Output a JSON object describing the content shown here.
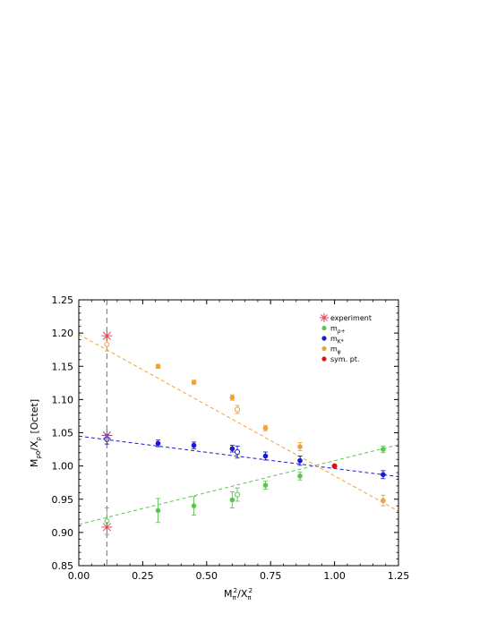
{
  "chart_data": {
    "type": "scatter",
    "title": "",
    "xlabel": {
      "main": "M",
      "sub1": "π",
      "sup": "2",
      "mid": "/X",
      "sub2": "π",
      "sup2": "2"
    },
    "ylabel": {
      "main": "M",
      "sub1": "ρ0",
      "mid": "/X",
      "sub2": "ρ",
      "tail": " [Octet]"
    },
    "xlim": [
      0.0,
      1.25
    ],
    "ylim": [
      0.85,
      1.25
    ],
    "xticks": [
      "0.00",
      "0.25",
      "0.50",
      "0.75",
      "1.00",
      "1.25"
    ],
    "yticks": [
      "0.85",
      "0.90",
      "0.95",
      "1.00",
      "1.05",
      "1.10",
      "1.15",
      "1.20",
      "1.25"
    ],
    "physical_point_x": 0.11,
    "legend_position": "top-right",
    "legend": [
      {
        "label": "experiment",
        "main": "experiment",
        "sub": "",
        "color": "#e8445a",
        "marker": "star"
      },
      {
        "label": "m_ρ+",
        "main": "m",
        "sub": "ρ+",
        "color": "#5cc550",
        "marker": "dot"
      },
      {
        "label": "m_K*",
        "main": "m",
        "sub": "K*",
        "color": "#1a1acc",
        "marker": "dot"
      },
      {
        "label": "m_φ",
        "main": "m",
        "sub": "φ",
        "color": "#f5a030",
        "marker": "dot"
      },
      {
        "label": "sym. pt.",
        "main": "sym. pt.",
        "sub": "",
        "color": "#dd1111",
        "marker": "dot"
      }
    ],
    "series": [
      {
        "name": "m_ρ+",
        "color": "#5cc550",
        "fit": [
          [
            0.0,
            0.912
          ],
          [
            1.25,
            1.032
          ]
        ],
        "points": [
          {
            "x": 0.31,
            "y": 0.933,
            "err": 0.018
          },
          {
            "x": 0.45,
            "y": 0.94,
            "err": 0.014
          },
          {
            "x": 0.6,
            "y": 0.949,
            "err": 0.012
          },
          {
            "x": 0.73,
            "y": 0.971,
            "err": 0.006
          },
          {
            "x": 0.865,
            "y": 0.985,
            "err": 0.006
          },
          {
            "x": 1.19,
            "y": 1.025,
            "err": 0.005
          }
        ],
        "open_points": [
          {
            "x": 0.62,
            "y": 0.957,
            "err": 0.01
          }
        ],
        "extrap": {
          "x": 0.11,
          "y": 0.917,
          "err": 0.02
        }
      },
      {
        "name": "m_K*",
        "color": "#1a1acc",
        "fit": [
          [
            0.0,
            1.045
          ],
          [
            1.25,
            0.984
          ]
        ],
        "points": [
          {
            "x": 0.31,
            "y": 1.034,
            "err": 0.005
          },
          {
            "x": 0.45,
            "y": 1.031,
            "err": 0.005
          },
          {
            "x": 0.6,
            "y": 1.026,
            "err": 0.005
          },
          {
            "x": 0.73,
            "y": 1.015,
            "err": 0.006
          },
          {
            "x": 0.865,
            "y": 1.008,
            "err": 0.007
          },
          {
            "x": 1.19,
            "y": 0.987,
            "err": 0.006
          }
        ],
        "open_points": [
          {
            "x": 0.62,
            "y": 1.021,
            "err": 0.009
          }
        ],
        "extrap": {
          "x": 0.11,
          "y": 1.04,
          "err": 0.007
        }
      },
      {
        "name": "m_φ",
        "color": "#f5a030",
        "fit": [
          [
            0.0,
            1.198
          ],
          [
            1.25,
            0.932
          ]
        ],
        "points": [
          {
            "x": 0.31,
            "y": 1.15,
            "err": 0.003
          },
          {
            "x": 0.45,
            "y": 1.126,
            "err": 0.003
          },
          {
            "x": 0.6,
            "y": 1.103,
            "err": 0.004
          },
          {
            "x": 0.73,
            "y": 1.057,
            "err": 0.004
          },
          {
            "x": 0.865,
            "y": 1.029,
            "err": 0.006
          },
          {
            "x": 1.19,
            "y": 0.948,
            "err": 0.008
          }
        ],
        "open_points": [
          {
            "x": 0.62,
            "y": 1.085,
            "err": 0.006
          }
        ],
        "extrap": {
          "x": 0.11,
          "y": 1.183,
          "err": 0.01
        }
      }
    ],
    "experiment": [
      {
        "x": 0.11,
        "y": 1.196,
        "color": "#e8445a"
      },
      {
        "x": 0.11,
        "y": 1.046,
        "color": "#9a4a8c"
      },
      {
        "x": 0.11,
        "y": 0.908,
        "color": "#e8445a"
      }
    ],
    "sym_point": {
      "x": 1.0,
      "y": 1.0,
      "color": "#dd1111"
    }
  }
}
